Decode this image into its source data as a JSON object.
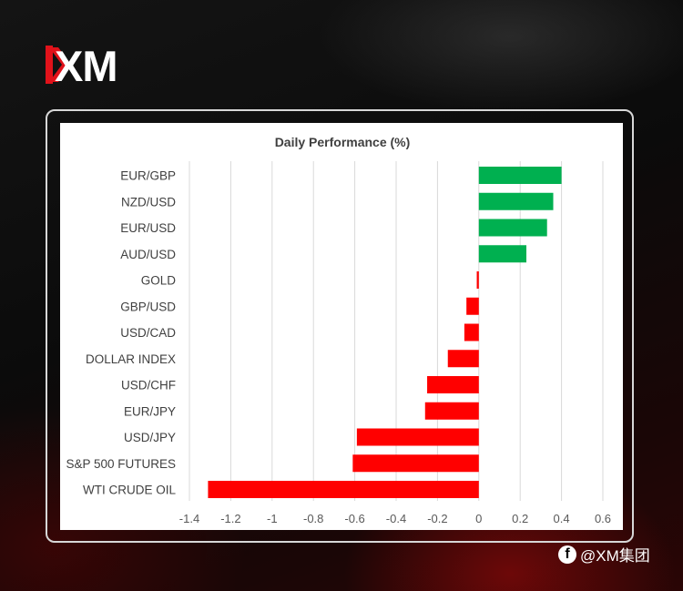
{
  "brand": {
    "logo_text": "XM",
    "logo_accent_color": "#e1121a"
  },
  "watermark": {
    "icon": "facebook-icon",
    "text": "@XM集团"
  },
  "chart_data": {
    "type": "bar",
    "orientation": "horizontal",
    "title": "Daily Performance (%)",
    "xlabel": "",
    "ylabel": "",
    "categories": [
      "EUR/GBP",
      "NZD/USD",
      "EUR/USD",
      "AUD/USD",
      "GOLD",
      "GBP/USD",
      "USD/CAD",
      "DOLLAR INDEX",
      "USD/CHF",
      "EUR/JPY",
      "USD/JPY",
      "S&P 500 FUTURES",
      "WTI CRUDE OIL"
    ],
    "values": [
      0.4,
      0.36,
      0.33,
      0.23,
      -0.01,
      -0.06,
      -0.07,
      -0.15,
      -0.25,
      -0.26,
      -0.59,
      -0.61,
      -1.31
    ],
    "xlim": [
      -1.4,
      0.6
    ],
    "xticks": [
      -1.4,
      -1.2,
      -1,
      -0.8,
      -0.6,
      -0.4,
      -0.2,
      0,
      0.2,
      0.4,
      0.6
    ],
    "gridlines": "vertical",
    "positive_color": "#00b050",
    "negative_color": "#ff0000",
    "legend": "none"
  }
}
